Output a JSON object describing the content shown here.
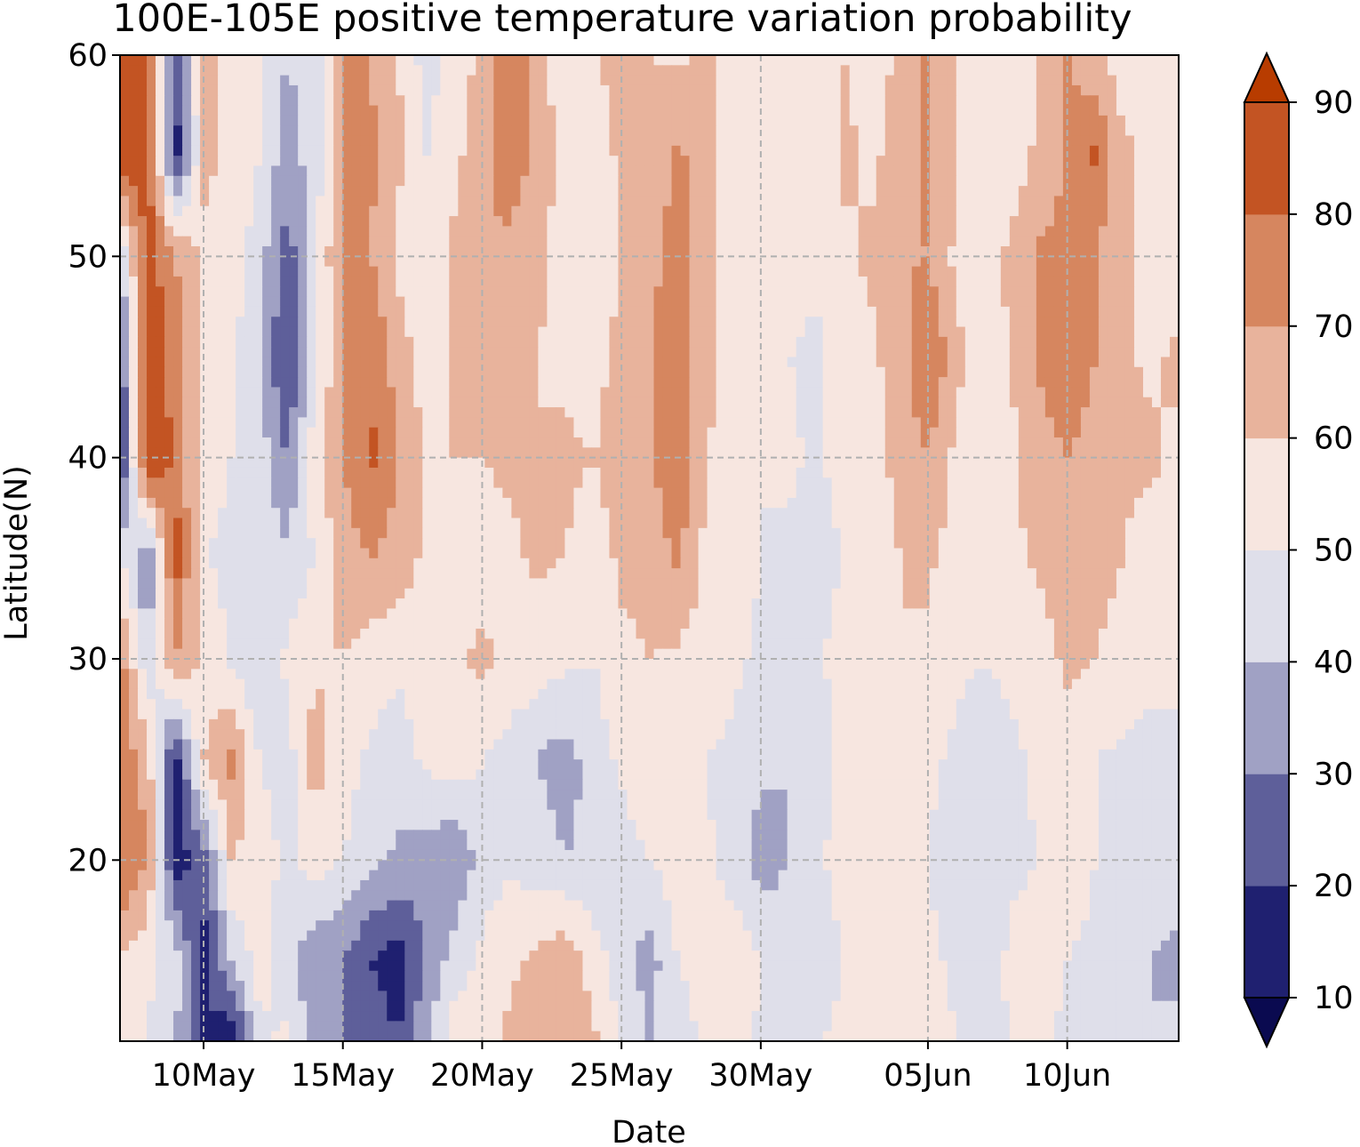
{
  "chart_data": {
    "type": "heatmap",
    "subtype": "filled-contour",
    "title": "100E-105E positive temperature variation probability",
    "xlabel": "Date",
    "ylabel": "Latitude(N)",
    "x_ticks": [
      "10May",
      "15May",
      "20May",
      "25May",
      "30May",
      "05Jun",
      "10Jun"
    ],
    "x_tick_days": [
      10,
      15,
      20,
      25,
      30,
      36,
      41
    ],
    "xlim_days": [
      7,
      45
    ],
    "y_ticks": [
      20,
      30,
      40,
      50,
      60
    ],
    "ylim": [
      11,
      60
    ],
    "grid": true,
    "colorbar": {
      "levels": [
        10,
        20,
        30,
        40,
        50,
        60,
        70,
        80,
        90
      ],
      "tick_labels": [
        "10",
        "20",
        "30",
        "40",
        "50",
        "60",
        "70",
        "80",
        "90"
      ],
      "extend": "both",
      "colors": [
        "#0a0a50",
        "#1f2070",
        "#5e5f9a",
        "#a0a1c4",
        "#dfdfea",
        "#f7e6e0",
        "#e8b39c",
        "#d6865f",
        "#c35423",
        "#b83c00"
      ]
    },
    "grid_x_days": [
      7,
      8,
      9,
      10,
      11,
      12,
      13,
      14,
      15,
      16,
      17,
      18,
      19,
      20,
      21,
      22,
      23,
      24,
      25,
      26,
      27,
      28,
      29,
      30,
      31,
      32,
      33,
      34,
      35,
      36,
      37,
      38,
      39,
      40,
      41,
      42,
      43,
      44,
      45
    ],
    "grid_y_lat": [
      60,
      55,
      50,
      45,
      40,
      35,
      30,
      25,
      20,
      15,
      11
    ],
    "z": [
      [
        88,
        85,
        20,
        65,
        55,
        52,
        40,
        45,
        72,
        70,
        60,
        45,
        55,
        62,
        80,
        62,
        55,
        58,
        65,
        60,
        58,
        62,
        55,
        58,
        60,
        58,
        60,
        55,
        62,
        72,
        58,
        55,
        52,
        62,
        70,
        62,
        55,
        52,
        58
      ],
      [
        88,
        85,
        15,
        62,
        58,
        50,
        35,
        45,
        70,
        72,
        62,
        50,
        58,
        65,
        80,
        65,
        58,
        55,
        62,
        65,
        72,
        65,
        52,
        55,
        58,
        55,
        62,
        58,
        65,
        72,
        60,
        58,
        55,
        62,
        72,
        82,
        62,
        58,
        55
      ],
      [
        40,
        85,
        70,
        58,
        55,
        45,
        25,
        45,
        75,
        70,
        58,
        50,
        62,
        70,
        65,
        62,
        55,
        50,
        60,
        68,
        72,
        65,
        50,
        52,
        55,
        52,
        58,
        62,
        68,
        70,
        58,
        55,
        62,
        72,
        72,
        70,
        62,
        58,
        55
      ],
      [
        20,
        90,
        75,
        60,
        52,
        42,
        18,
        45,
        72,
        80,
        65,
        55,
        62,
        65,
        60,
        60,
        58,
        55,
        65,
        70,
        75,
        65,
        55,
        52,
        50,
        48,
        55,
        58,
        65,
        82,
        62,
        58,
        60,
        72,
        80,
        70,
        62,
        58,
        62
      ],
      [
        15,
        90,
        78,
        55,
        50,
        45,
        30,
        58,
        70,
        82,
        70,
        58,
        60,
        60,
        62,
        60,
        62,
        60,
        65,
        68,
        80,
        60,
        55,
        50,
        52,
        48,
        55,
        58,
        62,
        70,
        58,
        55,
        58,
        65,
        70,
        65,
        62,
        62,
        58
      ],
      [
        50,
        30,
        85,
        50,
        48,
        45,
        42,
        50,
        65,
        70,
        65,
        58,
        60,
        55,
        58,
        62,
        60,
        55,
        62,
        62,
        72,
        58,
        55,
        50,
        48,
        45,
        50,
        55,
        60,
        62,
        55,
        52,
        58,
        62,
        65,
        62,
        60,
        55,
        52
      ],
      [
        75,
        40,
        70,
        58,
        48,
        40,
        52,
        58,
        60,
        55,
        52,
        55,
        58,
        62,
        58,
        55,
        52,
        50,
        58,
        60,
        58,
        55,
        52,
        48,
        45,
        48,
        55,
        58,
        60,
        58,
        52,
        50,
        52,
        55,
        62,
        60,
        58,
        55,
        52
      ],
      [
        78,
        65,
        15,
        60,
        72,
        50,
        45,
        65,
        55,
        48,
        45,
        52,
        55,
        50,
        45,
        40,
        35,
        45,
        52,
        58,
        55,
        50,
        48,
        42,
        40,
        45,
        52,
        55,
        58,
        52,
        48,
        45,
        48,
        52,
        55,
        50,
        48,
        45,
        48
      ],
      [
        82,
        70,
        15,
        25,
        60,
        55,
        48,
        55,
        50,
        42,
        38,
        35,
        30,
        45,
        48,
        45,
        40,
        42,
        45,
        50,
        55,
        52,
        45,
        35,
        40,
        48,
        55,
        58,
        52,
        50,
        45,
        45,
        48,
        50,
        55,
        50,
        45,
        42,
        45
      ],
      [
        60,
        52,
        45,
        15,
        40,
        55,
        42,
        32,
        30,
        20,
        15,
        30,
        45,
        52,
        58,
        62,
        68,
        55,
        45,
        35,
        50,
        55,
        58,
        50,
        45,
        42,
        50,
        55,
        58,
        52,
        48,
        45,
        52,
        55,
        50,
        48,
        45,
        40,
        38
      ],
      [
        55,
        50,
        40,
        20,
        12,
        48,
        52,
        35,
        30,
        25,
        20,
        40,
        55,
        58,
        62,
        65,
        70,
        62,
        48,
        40,
        45,
        52,
        55,
        48,
        45,
        48,
        55,
        58,
        60,
        55,
        50,
        48,
        50,
        52,
        48,
        45,
        42,
        40,
        42
      ]
    ]
  }
}
